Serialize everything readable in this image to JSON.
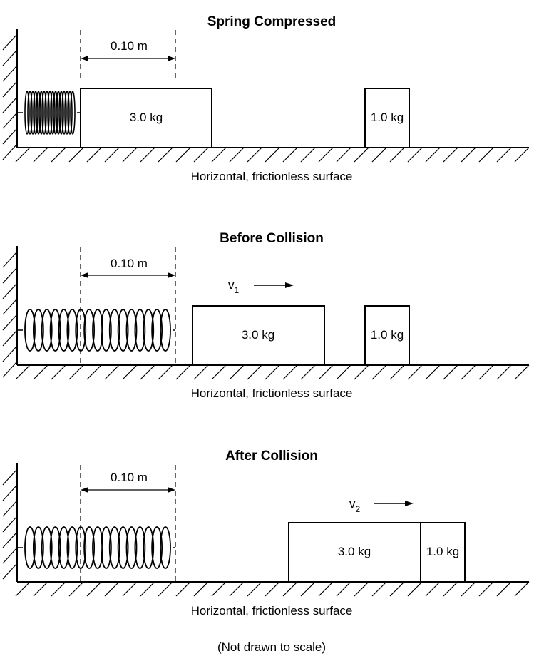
{
  "panels": [
    {
      "title": "Spring Compressed",
      "distance_label": "0.10  m",
      "block_big": "3.0 kg",
      "block_small": "1.0 kg",
      "surface_label": "Horizontal, frictionless surface"
    },
    {
      "title": "Before Collision",
      "distance_label": "0.10  m",
      "velocity": {
        "symbol": "v",
        "subscript": "1"
      },
      "block_big": "3.0 kg",
      "block_small": "1.0 kg",
      "surface_label": "Horizontal, frictionless surface"
    },
    {
      "title": "After Collision",
      "distance_label": "0.10  m",
      "velocity": {
        "symbol": "v",
        "subscript": "2"
      },
      "block_big": "3.0 kg",
      "block_small": "1.0 kg",
      "surface_label": "Horizontal, frictionless surface"
    }
  ],
  "footnote": "(Not drawn to scale)"
}
